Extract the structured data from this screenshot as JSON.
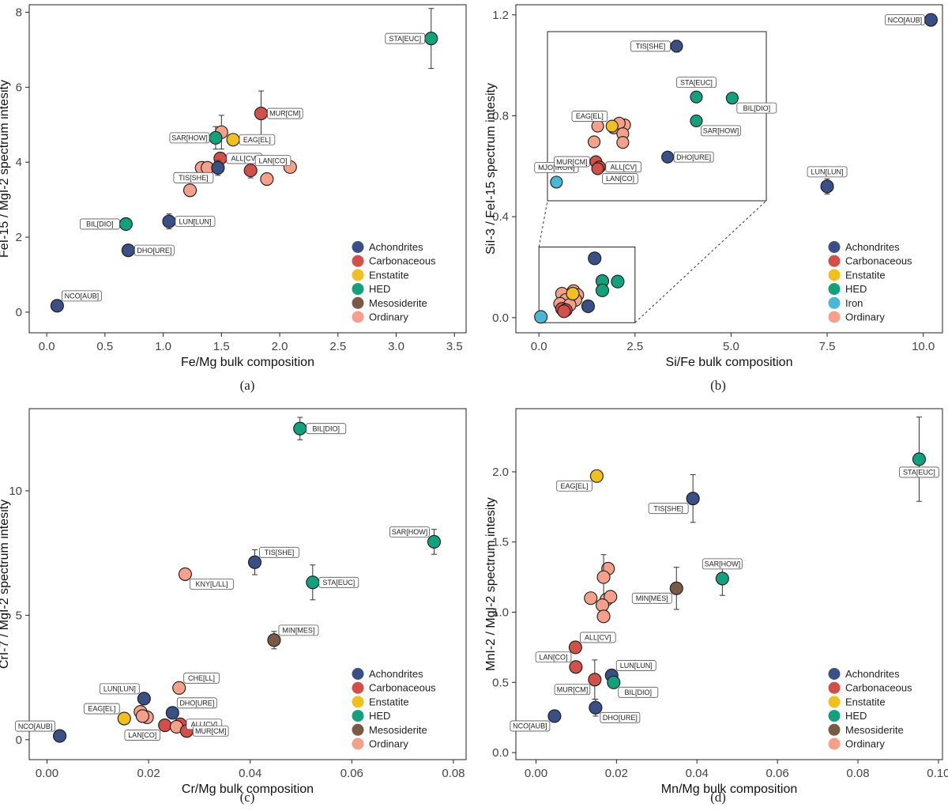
{
  "colors": {
    "Achondrites": "#3a4f86",
    "Carbonaceous": "#d1504a",
    "Enstatite": "#f0c020",
    "HED": "#13a07d",
    "Iron": "#4ab8d4",
    "Mesosiderite": "#7a5a44",
    "Ordinary": "#f4a08a"
  },
  "chart_data": [
    {
      "type": "scatter",
      "caption": "(a)",
      "xlabel": "Fe/Mg bulk composition",
      "ylabel": "FeI-15 / MgI-2 spectrum intesity",
      "xlim": [
        -0.15,
        3.6
      ],
      "ylim": [
        -0.55,
        8.2
      ],
      "xticks": [
        0,
        0.5,
        1,
        1.5,
        2,
        2.5,
        3,
        3.5
      ],
      "xtick_labels": [
        "0.0",
        "0.5",
        "1.0",
        "1.5",
        "2.0",
        "2.5",
        "3.0",
        "3.5"
      ],
      "yticks": [
        0,
        2,
        4,
        6,
        8
      ],
      "ytick_labels": [
        "0",
        "2",
        "4",
        "6",
        "8"
      ],
      "legend": [
        "Achondrites",
        "Carbonaceous",
        "Enstatite",
        "HED",
        "Mesosiderite",
        "Ordinary"
      ],
      "points": [
        {
          "x": 3.3,
          "y": 7.3,
          "group": "HED",
          "err": 0.8,
          "label": "STA[EUC]",
          "lpos": "left"
        },
        {
          "x": 1.84,
          "y": 5.3,
          "group": "Carbonaceous",
          "err": 0.6,
          "label": "MUR[CM]",
          "lpos": "right"
        },
        {
          "x": 1.6,
          "y": 4.6,
          "group": "Enstatite",
          "label": "EAG[EL]",
          "lpos": "right"
        },
        {
          "x": 1.5,
          "y": 4.8,
          "group": "Ordinary",
          "err": 0.45
        },
        {
          "x": 1.45,
          "y": 4.65,
          "group": "HED",
          "err": 0.3,
          "label": "SAR[HOW]",
          "lpos": "left"
        },
        {
          "x": 1.49,
          "y": 4.1,
          "group": "Carbonaceous",
          "label": "ALL[CV]",
          "lpos": "right"
        },
        {
          "x": 1.33,
          "y": 3.85,
          "group": "Ordinary"
        },
        {
          "x": 1.38,
          "y": 3.85,
          "group": "Ordinary"
        },
        {
          "x": 1.47,
          "y": 3.85,
          "group": "Achondrites",
          "err": 0.2,
          "label": "TIS[SHE]",
          "lpos": "below-left"
        },
        {
          "x": 1.23,
          "y": 3.25,
          "group": "Ordinary"
        },
        {
          "x": 1.75,
          "y": 3.78,
          "group": "Carbonaceous",
          "err": 0.2,
          "label": "LAN[CO]",
          "lpos": "above-right"
        },
        {
          "x": 1.89,
          "y": 3.55,
          "group": "Ordinary"
        },
        {
          "x": 2.09,
          "y": 3.87,
          "group": "Ordinary"
        },
        {
          "x": 1.05,
          "y": 2.42,
          "group": "Achondrites",
          "err": 0.2,
          "label": "LUN[LUN]",
          "lpos": "right"
        },
        {
          "x": 0.68,
          "y": 2.35,
          "group": "HED",
          "label": "BIL[DIO]",
          "lpos": "left"
        },
        {
          "x": 0.7,
          "y": 1.65,
          "group": "Achondrites",
          "label": "DHO[URE]",
          "lpos": "right"
        },
        {
          "x": 0.09,
          "y": 0.17,
          "group": "Achondrites",
          "label": "NCO[AUB]",
          "lpos": "above-right"
        }
      ]
    },
    {
      "type": "scatter",
      "caption": "(b)",
      "xlabel": "Si/Fe bulk composition",
      "ylabel": "SiI-3 / FeI-15 spectrum intesity",
      "xlim": [
        -0.6,
        10.5
      ],
      "ylim": [
        -0.06,
        1.24
      ],
      "xticks": [
        0,
        2.5,
        5,
        7.5,
        10
      ],
      "xtick_labels": [
        "0.0",
        "2.5",
        "5.0",
        "7.5",
        "10.0"
      ],
      "yticks": [
        0,
        0.4,
        0.8,
        1.2
      ],
      "ytick_labels": [
        "0.0",
        "0.4",
        "0.8",
        "1.2"
      ],
      "legend": [
        "Achondrites",
        "Carbonaceous",
        "Enstatite",
        "HED",
        "Iron",
        "Ordinary"
      ],
      "points": [
        {
          "x": 10.2,
          "y": 1.18,
          "group": "Achondrites",
          "err": 0.02,
          "label": "NCO[AUB]",
          "lpos": "left"
        },
        {
          "x": 7.5,
          "y": 0.52,
          "group": "Achondrites",
          "err": 0.03,
          "label": "LUN[LUN]",
          "lpos": "above"
        },
        {
          "x": 1.45,
          "y": 0.235,
          "group": "Achondrites"
        },
        {
          "x": 1.65,
          "y": 0.145,
          "group": "HED"
        },
        {
          "x": 2.05,
          "y": 0.143,
          "group": "HED"
        },
        {
          "x": 1.65,
          "y": 0.108,
          "group": "HED"
        },
        {
          "x": 1.28,
          "y": 0.045,
          "group": "Achondrites"
        },
        {
          "x": 0.05,
          "y": 0.003,
          "group": "Iron"
        },
        {
          "x": 0.6,
          "y": 0.095,
          "group": "Ordinary"
        },
        {
          "x": 0.9,
          "y": 0.105,
          "group": "Ordinary"
        },
        {
          "x": 1.0,
          "y": 0.09,
          "group": "Ordinary"
        },
        {
          "x": 0.7,
          "y": 0.07,
          "group": "Ordinary"
        },
        {
          "x": 0.95,
          "y": 0.07,
          "group": "Ordinary"
        },
        {
          "x": 0.55,
          "y": 0.055,
          "group": "Ordinary"
        },
        {
          "x": 0.8,
          "y": 0.05,
          "group": "Ordinary"
        },
        {
          "x": 0.6,
          "y": 0.035,
          "group": "Carbonaceous"
        },
        {
          "x": 0.7,
          "y": 0.03,
          "group": "Carbonaceous"
        },
        {
          "x": 0.65,
          "y": 0.025,
          "group": "Carbonaceous"
        },
        {
          "x": 0.88,
          "y": 0.095,
          "group": "Enstatite"
        }
      ],
      "inset": {
        "source_x": [
          0,
          2.5
        ],
        "source_y": [
          -0.02,
          0.28
        ],
        "xlim": [
          0,
          6.1
        ],
        "ylim": [
          -0.03,
          0.26
        ],
        "points": [
          {
            "x": 3.6,
            "y": 0.235,
            "group": "Achondrites",
            "err": 0.01,
            "label": "TIS[SHE]",
            "lpos": "left"
          },
          {
            "x": 4.15,
            "y": 0.148,
            "group": "HED",
            "err": 0.006,
            "label": "STA[EUC]",
            "lpos": "above"
          },
          {
            "x": 5.15,
            "y": 0.146,
            "group": "HED",
            "err": 0.006,
            "label": "BIL[DIO]",
            "lpos": "below-right"
          },
          {
            "x": 4.15,
            "y": 0.107,
            "group": "HED",
            "err": 0.006,
            "label": "SAR[HOW]",
            "lpos": "below-right"
          },
          {
            "x": 3.35,
            "y": 0.045,
            "group": "Achondrites",
            "err": 0.005,
            "label": "DHO[URE]",
            "lpos": "right"
          },
          {
            "x": 0.25,
            "y": 0.002,
            "group": "Iron",
            "label": "MJO[IRON]",
            "lpos": "above"
          },
          {
            "x": 1.4,
            "y": 0.098,
            "group": "Ordinary"
          },
          {
            "x": 1.85,
            "y": 0.095,
            "group": "Ordinary"
          },
          {
            "x": 2.15,
            "y": 0.1,
            "group": "Ordinary"
          },
          {
            "x": 2.0,
            "y": 0.103,
            "group": "Ordinary"
          },
          {
            "x": 2.1,
            "y": 0.085,
            "group": "Ordinary"
          },
          {
            "x": 1.3,
            "y": 0.071,
            "group": "Ordinary"
          },
          {
            "x": 2.1,
            "y": 0.07,
            "group": "Ordinary"
          },
          {
            "x": 1.8,
            "y": 0.098,
            "group": "Enstatite",
            "label": "EAG[EL]",
            "lpos": "above-left"
          },
          {
            "x": 1.35,
            "y": 0.037,
            "group": "Carbonaceous",
            "err": 0.006,
            "label": "MUR[CM]",
            "lpos": "left"
          },
          {
            "x": 1.45,
            "y": 0.028,
            "group": "Carbonaceous",
            "label": "ALL[CV]",
            "lpos": "right"
          },
          {
            "x": 1.4,
            "y": 0.025,
            "group": "Carbonaceous",
            "label": "LAN[CO]",
            "lpos": "below-right"
          }
        ]
      }
    },
    {
      "type": "scatter",
      "caption": "(c)",
      "xlabel": "Cr/Mg bulk composition",
      "ylabel": "CrI-7 / MgI-2 spectrum intesity",
      "xlim": [
        -0.0035,
        0.0825
      ],
      "ylim": [
        -0.8,
        13.3
      ],
      "xticks": [
        0,
        0.02,
        0.04,
        0.06,
        0.08
      ],
      "xtick_labels": [
        "0.00",
        "0.02",
        "0.04",
        "0.06",
        "0.08"
      ],
      "yticks": [
        0,
        5,
        10
      ],
      "ytick_labels": [
        "0",
        "5",
        "10"
      ],
      "legend": [
        "Achondrites",
        "Carbonaceous",
        "Enstatite",
        "HED",
        "Mesosiderite",
        "Ordinary"
      ],
      "points": [
        {
          "x": 0.0498,
          "y": 12.5,
          "group": "HED",
          "err": 0.45,
          "label": "BIL[DIO]",
          "lpos": "right"
        },
        {
          "x": 0.0762,
          "y": 7.95,
          "group": "HED",
          "err": 0.5,
          "label": "SAR[HOW]",
          "lpos": "above-left"
        },
        {
          "x": 0.0523,
          "y": 6.32,
          "group": "HED",
          "err": 0.7,
          "label": "STA[EUC]",
          "lpos": "right"
        },
        {
          "x": 0.0409,
          "y": 7.13,
          "group": "Achondrites",
          "err": 0.5,
          "label": "TIS[SHE]",
          "lpos": "above-right"
        },
        {
          "x": 0.0272,
          "y": 6.65,
          "group": "Ordinary",
          "label": "KNY[L/LL]",
          "lpos": "below-right"
        },
        {
          "x": 0.0447,
          "y": 4.0,
          "group": "Mesosiderite",
          "err": 0.35,
          "label": "MIN[MES]",
          "lpos": "above-right"
        },
        {
          "x": 0.026,
          "y": 2.08,
          "group": "Ordinary",
          "label": "CHE[LL]",
          "lpos": "above-right"
        },
        {
          "x": 0.0191,
          "y": 1.65,
          "group": "Achondrites",
          "label": "LUN[LUN]",
          "lpos": "above-left"
        },
        {
          "x": 0.0184,
          "y": 1.12,
          "group": "Ordinary"
        },
        {
          "x": 0.0197,
          "y": 0.9,
          "group": "Ordinary"
        },
        {
          "x": 0.0188,
          "y": 0.95,
          "group": "Ordinary"
        },
        {
          "x": 0.0247,
          "y": 1.08,
          "group": "Achondrites",
          "label": "DHO[URE]",
          "lpos": "above-right"
        },
        {
          "x": 0.0152,
          "y": 0.85,
          "group": "Enstatite",
          "label": "EAG[EL]",
          "lpos": "above-left"
        },
        {
          "x": 0.0262,
          "y": 0.62,
          "group": "Carbonaceous",
          "label": "ALL[CV]",
          "lpos": "right"
        },
        {
          "x": 0.0232,
          "y": 0.58,
          "group": "Carbonaceous",
          "label": "LAN[CO]",
          "lpos": "below-left"
        },
        {
          "x": 0.0255,
          "y": 0.52,
          "group": "Ordinary"
        },
        {
          "x": 0.0275,
          "y": 0.35,
          "group": "Carbonaceous",
          "label": "MUR[CM]",
          "lpos": "right"
        },
        {
          "x": 0.0025,
          "y": 0.15,
          "group": "Achondrites",
          "label": "NCO[AUB]",
          "lpos": "above-left"
        }
      ]
    },
    {
      "type": "scatter",
      "caption": "(d)",
      "xlabel": "Mn/Mg bulk composition",
      "ylabel": "MnI-2 / MgI-2 spectrum intesity",
      "xlim": [
        -0.005,
        0.101
      ],
      "ylim": [
        -0.05,
        2.45
      ],
      "xticks": [
        0,
        0.02,
        0.04,
        0.06,
        0.08,
        0.1
      ],
      "xtick_labels": [
        "0.00",
        "0.02",
        "0.04",
        "0.06",
        "0.08",
        "0.10"
      ],
      "yticks": [
        0,
        0.5,
        1,
        1.5,
        2
      ],
      "ytick_labels": [
        "0.0",
        "0.5",
        "1.0",
        "1.5",
        "2.0"
      ],
      "legend": [
        "Achondrites",
        "Carbonaceous",
        "Enstatite",
        "HED",
        "Mesosiderite",
        "Ordinary"
      ],
      "points": [
        {
          "x": 0.0952,
          "y": 2.09,
          "group": "HED",
          "err": 0.3,
          "label": "STA[EUC]",
          "lpos": "below"
        },
        {
          "x": 0.0151,
          "y": 1.97,
          "group": "Enstatite",
          "label": "EAG[EL]",
          "lpos": "below-left"
        },
        {
          "x": 0.039,
          "y": 1.81,
          "group": "Achondrites",
          "err": 0.17,
          "label": "TIS[SHE]",
          "lpos": "below-left"
        },
        {
          "x": 0.0463,
          "y": 1.24,
          "group": "HED",
          "err": 0.12,
          "label": "SAR[HOW]",
          "lpos": "above"
        },
        {
          "x": 0.0349,
          "y": 1.17,
          "group": "Mesosiderite",
          "err": 0.15,
          "label": "MIN[MES]",
          "lpos": "below-left"
        },
        {
          "x": 0.0179,
          "y": 1.31,
          "group": "Ordinary"
        },
        {
          "x": 0.0168,
          "y": 1.25,
          "group": "Ordinary",
          "err": 0.16
        },
        {
          "x": 0.0136,
          "y": 1.1,
          "group": "Ordinary"
        },
        {
          "x": 0.0175,
          "y": 1.09,
          "group": "Ordinary"
        },
        {
          "x": 0.0185,
          "y": 1.11,
          "group": "Ordinary"
        },
        {
          "x": 0.0165,
          "y": 1.05,
          "group": "Ordinary"
        },
        {
          "x": 0.0168,
          "y": 0.97,
          "group": "Ordinary"
        },
        {
          "x": 0.0098,
          "y": 0.75,
          "group": "Carbonaceous",
          "label": "ALL[CV]",
          "lpos": "above-right"
        },
        {
          "x": 0.0099,
          "y": 0.61,
          "group": "Carbonaceous",
          "label": "LAN[CO]",
          "lpos": "above-left"
        },
        {
          "x": 0.0146,
          "y": 0.52,
          "group": "Carbonaceous",
          "err": 0.14,
          "label": "MUR[CM]",
          "lpos": "below-left"
        },
        {
          "x": 0.0188,
          "y": 0.55,
          "group": "Achondrites",
          "label": "LUN[LUN]",
          "lpos": "above-right"
        },
        {
          "x": 0.0193,
          "y": 0.5,
          "group": "HED",
          "label": "BIL[DIO]",
          "lpos": "below-right"
        },
        {
          "x": 0.0148,
          "y": 0.32,
          "group": "Achondrites",
          "err": 0.06,
          "label": "DHO[URE]",
          "lpos": "below-right"
        },
        {
          "x": 0.0046,
          "y": 0.26,
          "group": "Achondrites",
          "label": "NCO[AUB]",
          "lpos": "below-left"
        }
      ]
    }
  ]
}
